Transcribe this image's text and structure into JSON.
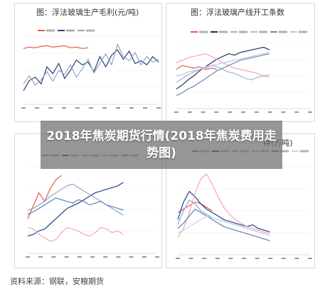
{
  "overlay": {
    "title": "2018年焦炭期货行情(2018年焦炭费用走势图)"
  },
  "source_text": "资料来源：钢联，安粮期货",
  "chart_data": [
    {
      "type": "line",
      "title": "图：浮法玻璃生产毛利(元/吨)",
      "legend": [
        "series-a",
        "series-b",
        "series-c"
      ],
      "colors": [
        "#e8574f",
        "#2f3f6f",
        "#8fa6c9"
      ],
      "series": [
        {
          "values": [
            82,
            84,
            83,
            85,
            86,
            84,
            85,
            86,
            83,
            84,
            82,
            83
          ]
        },
        {
          "values": [
            20,
            35,
            40,
            30,
            55,
            45,
            60,
            38,
            50,
            65,
            58,
            62,
            48,
            70,
            55,
            72,
            80,
            66,
            78,
            60,
            64,
            58,
            70,
            62
          ]
        },
        {
          "values": [
            30,
            42,
            28,
            36,
            48,
            34,
            50,
            44,
            58,
            40,
            52,
            66,
            46,
            60,
            74,
            58,
            88,
            70,
            64,
            76,
            58,
            70,
            62,
            66
          ]
        }
      ]
    },
    {
      "type": "line",
      "title": "图：浮法玻璃产线开工条数",
      "legend": [
        "2013",
        "2014",
        "2015",
        "2016",
        "2017",
        "2018"
      ],
      "colors": [
        "#e8574f",
        "#1f2f5f",
        "#9fb4d8",
        "#f4a6b3",
        "#6f86b8",
        "#b8c7e0"
      ],
      "series": [
        {
          "values": [
            60,
            66,
            64,
            62,
            64,
            60,
            62,
            60
          ]
        },
        {
          "values": [
            30,
            36,
            44,
            50,
            58,
            64,
            70,
            76,
            80,
            84,
            82,
            86,
            88,
            90,
            92,
            94,
            90
          ]
        },
        {
          "values": [
            40,
            46,
            52,
            56,
            60,
            62,
            66,
            64,
            60,
            56,
            54,
            50,
            46,
            44,
            48,
            50,
            52
          ]
        },
        {
          "values": [
            70,
            74,
            78,
            80,
            82,
            84,
            80,
            76,
            70,
            66,
            62,
            60,
            58,
            56,
            54,
            50,
            48
          ]
        },
        {
          "values": [
            20,
            24,
            30,
            34,
            40,
            46,
            52,
            58,
            62,
            66,
            70,
            74,
            76,
            78,
            80,
            82,
            84
          ]
        },
        {
          "values": [
            50,
            52,
            56,
            58,
            60,
            64,
            66,
            68,
            70,
            72,
            74,
            76,
            78,
            80,
            82,
            84,
            86
          ]
        }
      ]
    },
    {
      "type": "line",
      "title": "",
      "legend": [
        "series-1",
        "series-2",
        "series-3",
        "series-4",
        "series-5"
      ],
      "colors": [
        "#e8574f",
        "#1f3f8f",
        "#8fa6c9",
        "#f4a6b3",
        "#5f7fb8"
      ],
      "series": [
        {
          "values": [
            40,
            55,
            70,
            60,
            75,
            85,
            90
          ]
        },
        {
          "values": [
            20,
            22,
            26,
            28,
            34,
            40,
            46,
            52,
            55,
            58,
            62,
            66,
            70,
            72,
            74,
            76,
            78,
            82
          ]
        },
        {
          "values": [
            50,
            52,
            56,
            60,
            66,
            70,
            74,
            78,
            80,
            76,
            72,
            68,
            64,
            60,
            56,
            52,
            48,
            44
          ]
        },
        {
          "values": [
            30,
            28,
            22,
            18,
            14,
            16,
            24,
            30,
            28,
            26,
            22,
            20,
            24,
            30,
            28,
            24,
            26,
            22
          ]
        },
        {
          "values": [
            45,
            48,
            52,
            56,
            60,
            64,
            62,
            60,
            58,
            62,
            60,
            56,
            58,
            60,
            56,
            54,
            52,
            50
          ]
        }
      ]
    },
    {
      "type": "line",
      "title": "存(万吨)",
      "legend": [
        "series-1",
        "series-2",
        "series-3",
        "series-4",
        "series-5",
        "series-6"
      ],
      "colors": [
        "#e8574f",
        "#1f3f8f",
        "#8fa6c9",
        "#f4a6b3",
        "#5f7fb8",
        "#c8d3e6"
      ],
      "series": [
        {
          "values": [
            48,
            52,
            56,
            60,
            58,
            54,
            50
          ]
        },
        {
          "values": [
            40,
            60,
            72,
            66,
            58,
            52,
            48,
            44,
            40,
            38,
            36,
            34,
            32,
            34,
            30,
            28,
            26
          ]
        },
        {
          "values": [
            35,
            50,
            62,
            58,
            50,
            46,
            42,
            40,
            38,
            36,
            34,
            32,
            30,
            28,
            26,
            24,
            22
          ]
        },
        {
          "values": [
            20,
            30,
            48,
            70,
            86,
            92,
            80,
            66,
            54,
            46,
            40,
            36,
            32,
            30,
            28,
            26,
            24
          ]
        },
        {
          "values": [
            30,
            36,
            44,
            52,
            48,
            44,
            40,
            36,
            32,
            30,
            28,
            26,
            24,
            22,
            20,
            18,
            16
          ]
        },
        {
          "values": [
            25,
            28,
            32,
            36,
            40,
            44,
            42,
            40,
            38,
            36,
            34,
            32,
            30,
            28,
            26,
            24,
            22
          ]
        }
      ]
    }
  ]
}
